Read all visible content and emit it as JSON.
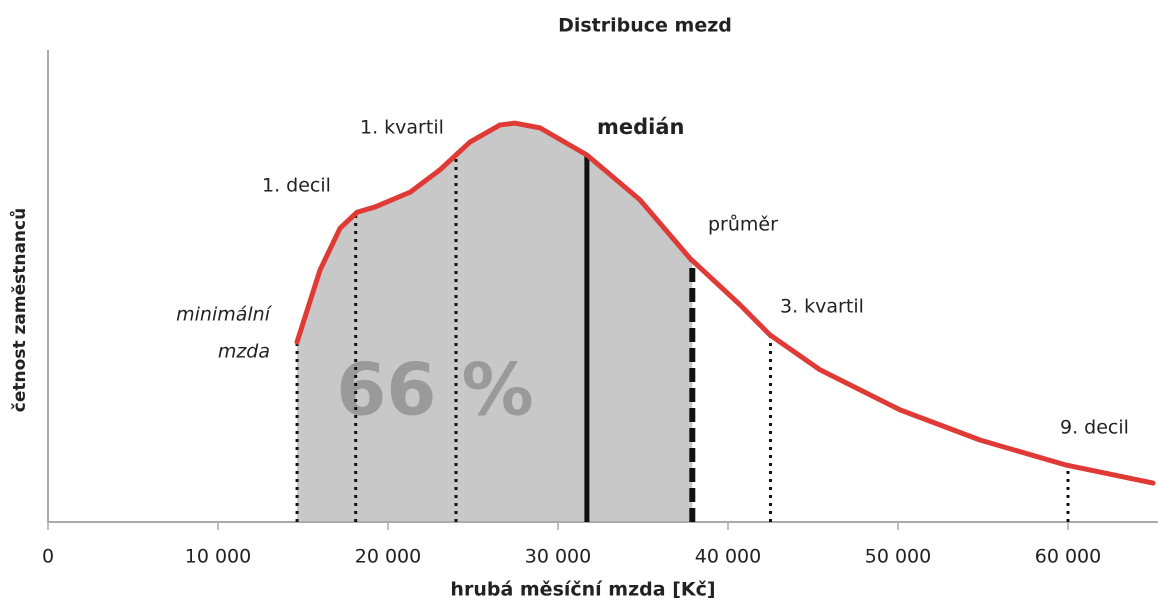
{
  "chart_data": {
    "type": "area",
    "title": "Distribuce mezd",
    "xlabel": "hrubá měsíční mzda [Kč]",
    "ylabel": "četnost zaměstnanců",
    "x": [
      14650,
      16000,
      17180,
      18180,
      19240,
      21300,
      23060,
      24820,
      26590,
      27470,
      28940,
      31700,
      34820,
      37760,
      40710,
      42470,
      45410,
      50120,
      54820,
      59820,
      65000
    ],
    "y": [
      3.05,
      4.27,
      4.98,
      5.25,
      5.34,
      5.59,
      5.97,
      6.44,
      6.73,
      6.76,
      6.68,
      6.22,
      5.46,
      4.47,
      3.68,
      3.17,
      2.58,
      1.9,
      1.39,
      0.97,
      0.66
    ],
    "color": "#e03a36",
    "fill": "#c8c8c8",
    "xlim": [
      0,
      65000
    ],
    "ylim": [
      0,
      8
    ],
    "xticks": [
      0,
      {
        "value": 10000,
        "label": "10 000"
      },
      {
        "value": 20000,
        "label": "20 000"
      },
      {
        "value": 30000,
        "label": "30 000"
      },
      {
        "value": 40000,
        "label": "40 000"
      },
      {
        "value": 50000,
        "label": "50 000"
      },
      {
        "value": 60000,
        "label": "60 000"
      }
    ],
    "markers": [
      {
        "x": 14650,
        "label": [
          "minimální",
          "mzda"
        ],
        "style": "dotted"
      },
      {
        "x": 18100,
        "label": [
          "1. decil"
        ],
        "style": "dotted"
      },
      {
        "x": 24000,
        "label": [
          "1. kvartil"
        ],
        "style": "dotted"
      },
      {
        "x": 31700,
        "label": [
          "medián"
        ],
        "style": "solid"
      },
      {
        "x": 37900,
        "label": [
          "průměr"
        ],
        "style": "dashed"
      },
      {
        "x": 42500,
        "label": [
          "3. kvartil"
        ],
        "style": "dotted"
      },
      {
        "x": 60000,
        "label": [
          "9. decil"
        ],
        "style": "dotted"
      }
    ],
    "shade_from_marker": 0,
    "shade_to_marker": 4,
    "shade_label": "66 %"
  }
}
